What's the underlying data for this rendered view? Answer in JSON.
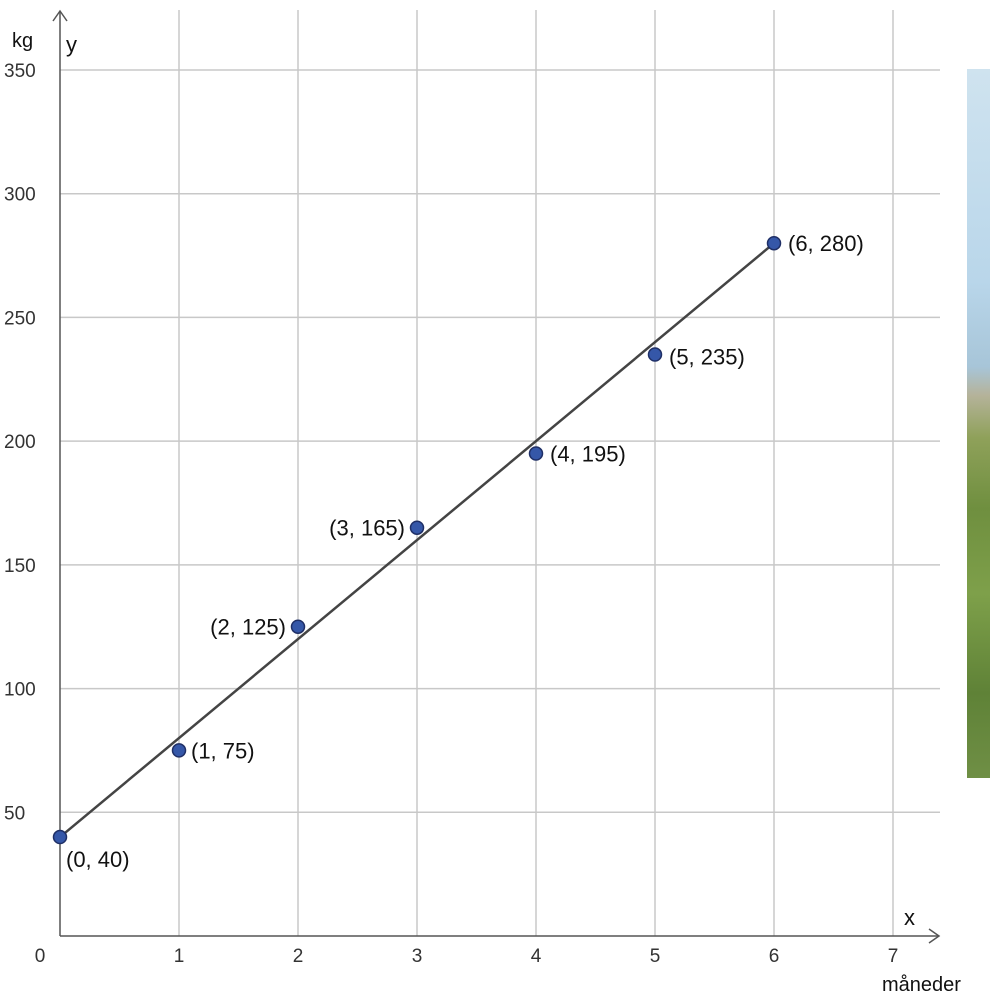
{
  "chart_data": {
    "type": "scatter",
    "xlabel": "x",
    "ylabel": "y",
    "x_unit": "måneder",
    "y_unit": "kg",
    "xlim": [
      0,
      7
    ],
    "ylim": [
      0,
      350
    ],
    "x_ticks": [
      0,
      1,
      2,
      3,
      4,
      5,
      6,
      7
    ],
    "y_ticks": [
      50,
      100,
      150,
      200,
      250,
      300,
      350
    ],
    "origin_label": "0",
    "grid": true,
    "points": [
      {
        "x": 0,
        "y": 40,
        "label": "(0, 40)"
      },
      {
        "x": 1,
        "y": 75,
        "label": "(1, 75)"
      },
      {
        "x": 2,
        "y": 125,
        "label": "(2, 125)"
      },
      {
        "x": 3,
        "y": 165,
        "label": "(3, 165)"
      },
      {
        "x": 4,
        "y": 195,
        "label": "(4, 195)"
      },
      {
        "x": 5,
        "y": 235,
        "label": "(5, 235)"
      },
      {
        "x": 6,
        "y": 280,
        "label": "(6, 280)"
      }
    ],
    "trend_line": {
      "from": [
        0,
        40
      ],
      "to": [
        6,
        280
      ]
    },
    "point_color": "#3557a8",
    "line_color": "#444444"
  },
  "photo": {
    "colors": [
      "#b9d6ea",
      "#7ea04a"
    ]
  }
}
